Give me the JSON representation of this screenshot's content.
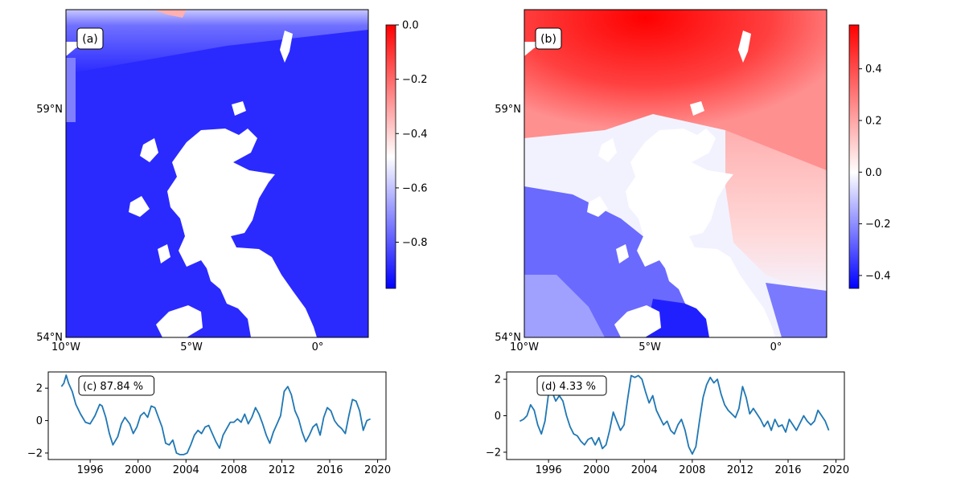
{
  "colors": {
    "land": "#ffffff",
    "sea_strong_blue": "#2020ff",
    "sea_light": "#e8e8ff",
    "sea_red": "#ff1a1a",
    "line": "#1f77b4"
  },
  "chart_data": [
    {
      "id": "a",
      "type": "heatmap",
      "panel_label": "(a)",
      "x_ticks": [
        "10°W",
        "5°W",
        "0°"
      ],
      "y_ticks": [
        "54°N",
        "59°N"
      ],
      "colorbar": {
        "cmap": "bwr",
        "range": [
          -0.97,
          0.0
        ],
        "ticks": [
          0.0,
          -0.2,
          -0.4,
          -0.6,
          -0.8
        ],
        "tick_labels": [
          "0.0",
          "−0.2",
          "−0.4",
          "−0.6",
          "−0.8"
        ]
      }
    },
    {
      "id": "b",
      "type": "heatmap",
      "panel_label": "(b)",
      "x_ticks": [
        "10°W",
        "5°W",
        "0°"
      ],
      "y_ticks": [
        "54°N",
        "59°N"
      ],
      "colorbar": {
        "cmap": "bwr",
        "range": [
          -0.45,
          0.57
        ],
        "ticks": [
          0.4,
          0.2,
          0.0,
          -0.2,
          -0.4
        ],
        "tick_labels": [
          "0.4",
          "0.2",
          "0.0",
          "−0.2",
          "−0.4"
        ]
      }
    },
    {
      "id": "c",
      "type": "line",
      "panel_label": "(c) 87.84 %",
      "xlim": [
        1992.5,
        2020.7
      ],
      "ylim": [
        -2.4,
        3.0
      ],
      "x_ticks": [
        1996,
        2000,
        2004,
        2008,
        2012,
        2016,
        2020
      ],
      "y_ticks": [
        -2,
        0,
        2
      ],
      "y_tick_labels": [
        "−2",
        "0",
        "2"
      ],
      "series": [
        {
          "x": [
            1993.6,
            1993.8,
            1994.0,
            1994.2,
            1994.5,
            1994.8,
            1995.2,
            1995.6,
            1996.0,
            1996.4,
            1996.8,
            1997.0,
            1997.3,
            1997.6,
            1997.9,
            1998.3,
            1998.6,
            1998.9,
            1999.3,
            1999.6,
            1999.9,
            2000.2,
            2000.5,
            2000.8,
            2001.1,
            2001.4,
            2001.7,
            2002.0,
            2002.3,
            2002.6,
            2002.9,
            2003.2,
            2003.5,
            2003.8,
            2004.1,
            2004.4,
            2004.7,
            2005.0,
            2005.3,
            2005.6,
            2005.9,
            2006.2,
            2006.5,
            2006.8,
            2007.1,
            2007.4,
            2007.7,
            2008.0,
            2008.3,
            2008.6,
            2008.9,
            2009.2,
            2009.5,
            2009.8,
            2010.1,
            2010.4,
            2010.7,
            2011.0,
            2011.3,
            2011.6,
            2011.9,
            2012.2,
            2012.5,
            2012.8,
            2013.1,
            2013.4,
            2013.7,
            2014.0,
            2014.3,
            2014.6,
            2014.9,
            2015.2,
            2015.5,
            2015.8,
            2016.1,
            2016.4,
            2016.7,
            2017.0,
            2017.3,
            2017.6,
            2017.9,
            2018.2,
            2018.5,
            2018.8,
            2019.1,
            2019.4
          ],
          "y": [
            2.1,
            2.3,
            2.8,
            2.3,
            1.8,
            1.0,
            0.4,
            -0.1,
            -0.2,
            0.3,
            1.0,
            0.9,
            0.2,
            -0.8,
            -1.5,
            -1.0,
            -0.2,
            0.2,
            -0.2,
            -0.8,
            -0.4,
            0.3,
            0.5,
            0.2,
            0.9,
            0.8,
            0.2,
            -0.4,
            -1.4,
            -1.5,
            -1.2,
            -2.0,
            -2.1,
            -2.1,
            -2.0,
            -1.5,
            -0.9,
            -0.6,
            -0.8,
            -0.4,
            -0.3,
            -0.8,
            -1.3,
            -1.7,
            -0.9,
            -0.5,
            -0.1,
            -0.1,
            0.1,
            -0.1,
            0.4,
            -0.2,
            0.2,
            0.8,
            0.4,
            -0.2,
            -0.9,
            -1.4,
            -0.7,
            -0.2,
            0.3,
            1.8,
            2.1,
            1.6,
            0.6,
            0.1,
            -0.7,
            -1.3,
            -0.9,
            -0.4,
            -0.2,
            -0.9,
            0.2,
            0.8,
            0.6,
            0.0,
            -0.3,
            -0.5,
            -0.8,
            0.3,
            1.3,
            1.2,
            0.6,
            -0.6,
            0.0,
            0.1
          ]
        }
      ]
    },
    {
      "id": "d",
      "type": "line",
      "panel_label": "(d) 4.33 %",
      "xlim": [
        1992.5,
        2020.7
      ],
      "ylim": [
        -2.4,
        2.4
      ],
      "x_ticks": [
        1996,
        2000,
        2004,
        2008,
        2012,
        2016,
        2020
      ],
      "y_ticks": [
        -2,
        0,
        2
      ],
      "y_tick_labels": [
        "−2",
        "0",
        "2"
      ],
      "series": [
        {
          "x": [
            1993.6,
            1993.9,
            1994.2,
            1994.5,
            1994.8,
            1995.1,
            1995.4,
            1995.7,
            1996.0,
            1996.3,
            1996.6,
            1996.9,
            1997.2,
            1997.5,
            1997.8,
            1998.1,
            1998.4,
            1998.7,
            1999.0,
            1999.3,
            1999.6,
            1999.9,
            2000.2,
            2000.5,
            2000.8,
            2001.1,
            2001.4,
            2001.7,
            2002.0,
            2002.3,
            2002.6,
            2002.9,
            2003.2,
            2003.5,
            2003.8,
            2004.1,
            2004.4,
            2004.7,
            2005.0,
            2005.3,
            2005.6,
            2005.9,
            2006.2,
            2006.5,
            2006.8,
            2007.1,
            2007.4,
            2007.7,
            2008.0,
            2008.3,
            2008.6,
            2008.9,
            2009.2,
            2009.5,
            2009.8,
            2010.1,
            2010.4,
            2010.7,
            2011.0,
            2011.3,
            2011.6,
            2011.9,
            2012.2,
            2012.5,
            2012.8,
            2013.1,
            2013.4,
            2013.7,
            2014.0,
            2014.3,
            2014.6,
            2014.9,
            2015.2,
            2015.5,
            2015.8,
            2016.1,
            2016.4,
            2016.7,
            2017.0,
            2017.3,
            2017.6,
            2017.9,
            2018.2,
            2018.5,
            2018.8,
            2019.1,
            2019.4
          ],
          "y": [
            -0.3,
            -0.2,
            0.0,
            0.6,
            0.3,
            -0.5,
            -1.0,
            -0.3,
            1.2,
            1.3,
            0.8,
            1.1,
            0.8,
            0.0,
            -0.6,
            -1.0,
            -1.1,
            -1.4,
            -1.6,
            -1.3,
            -1.2,
            -1.6,
            -1.2,
            -1.8,
            -1.6,
            -0.8,
            0.2,
            -0.3,
            -0.8,
            -0.5,
            0.9,
            2.2,
            2.1,
            2.2,
            2.0,
            1.3,
            0.7,
            1.1,
            0.3,
            -0.1,
            -0.5,
            -0.3,
            -0.8,
            -1.0,
            -0.5,
            -0.2,
            -0.8,
            -1.7,
            -2.1,
            -1.7,
            -0.3,
            1.0,
            1.7,
            2.1,
            1.8,
            2.0,
            1.2,
            0.6,
            0.3,
            0.1,
            -0.1,
            0.4,
            1.6,
            1.0,
            0.1,
            0.4,
            0.1,
            -0.2,
            -0.6,
            -0.3,
            -0.8,
            -0.2,
            -0.6,
            -0.5,
            -0.9,
            -0.2,
            -0.5,
            -0.8,
            -0.4,
            0.0,
            -0.3,
            -0.5,
            -0.3,
            0.3,
            0.0,
            -0.3,
            -0.8
          ]
        }
      ]
    }
  ]
}
